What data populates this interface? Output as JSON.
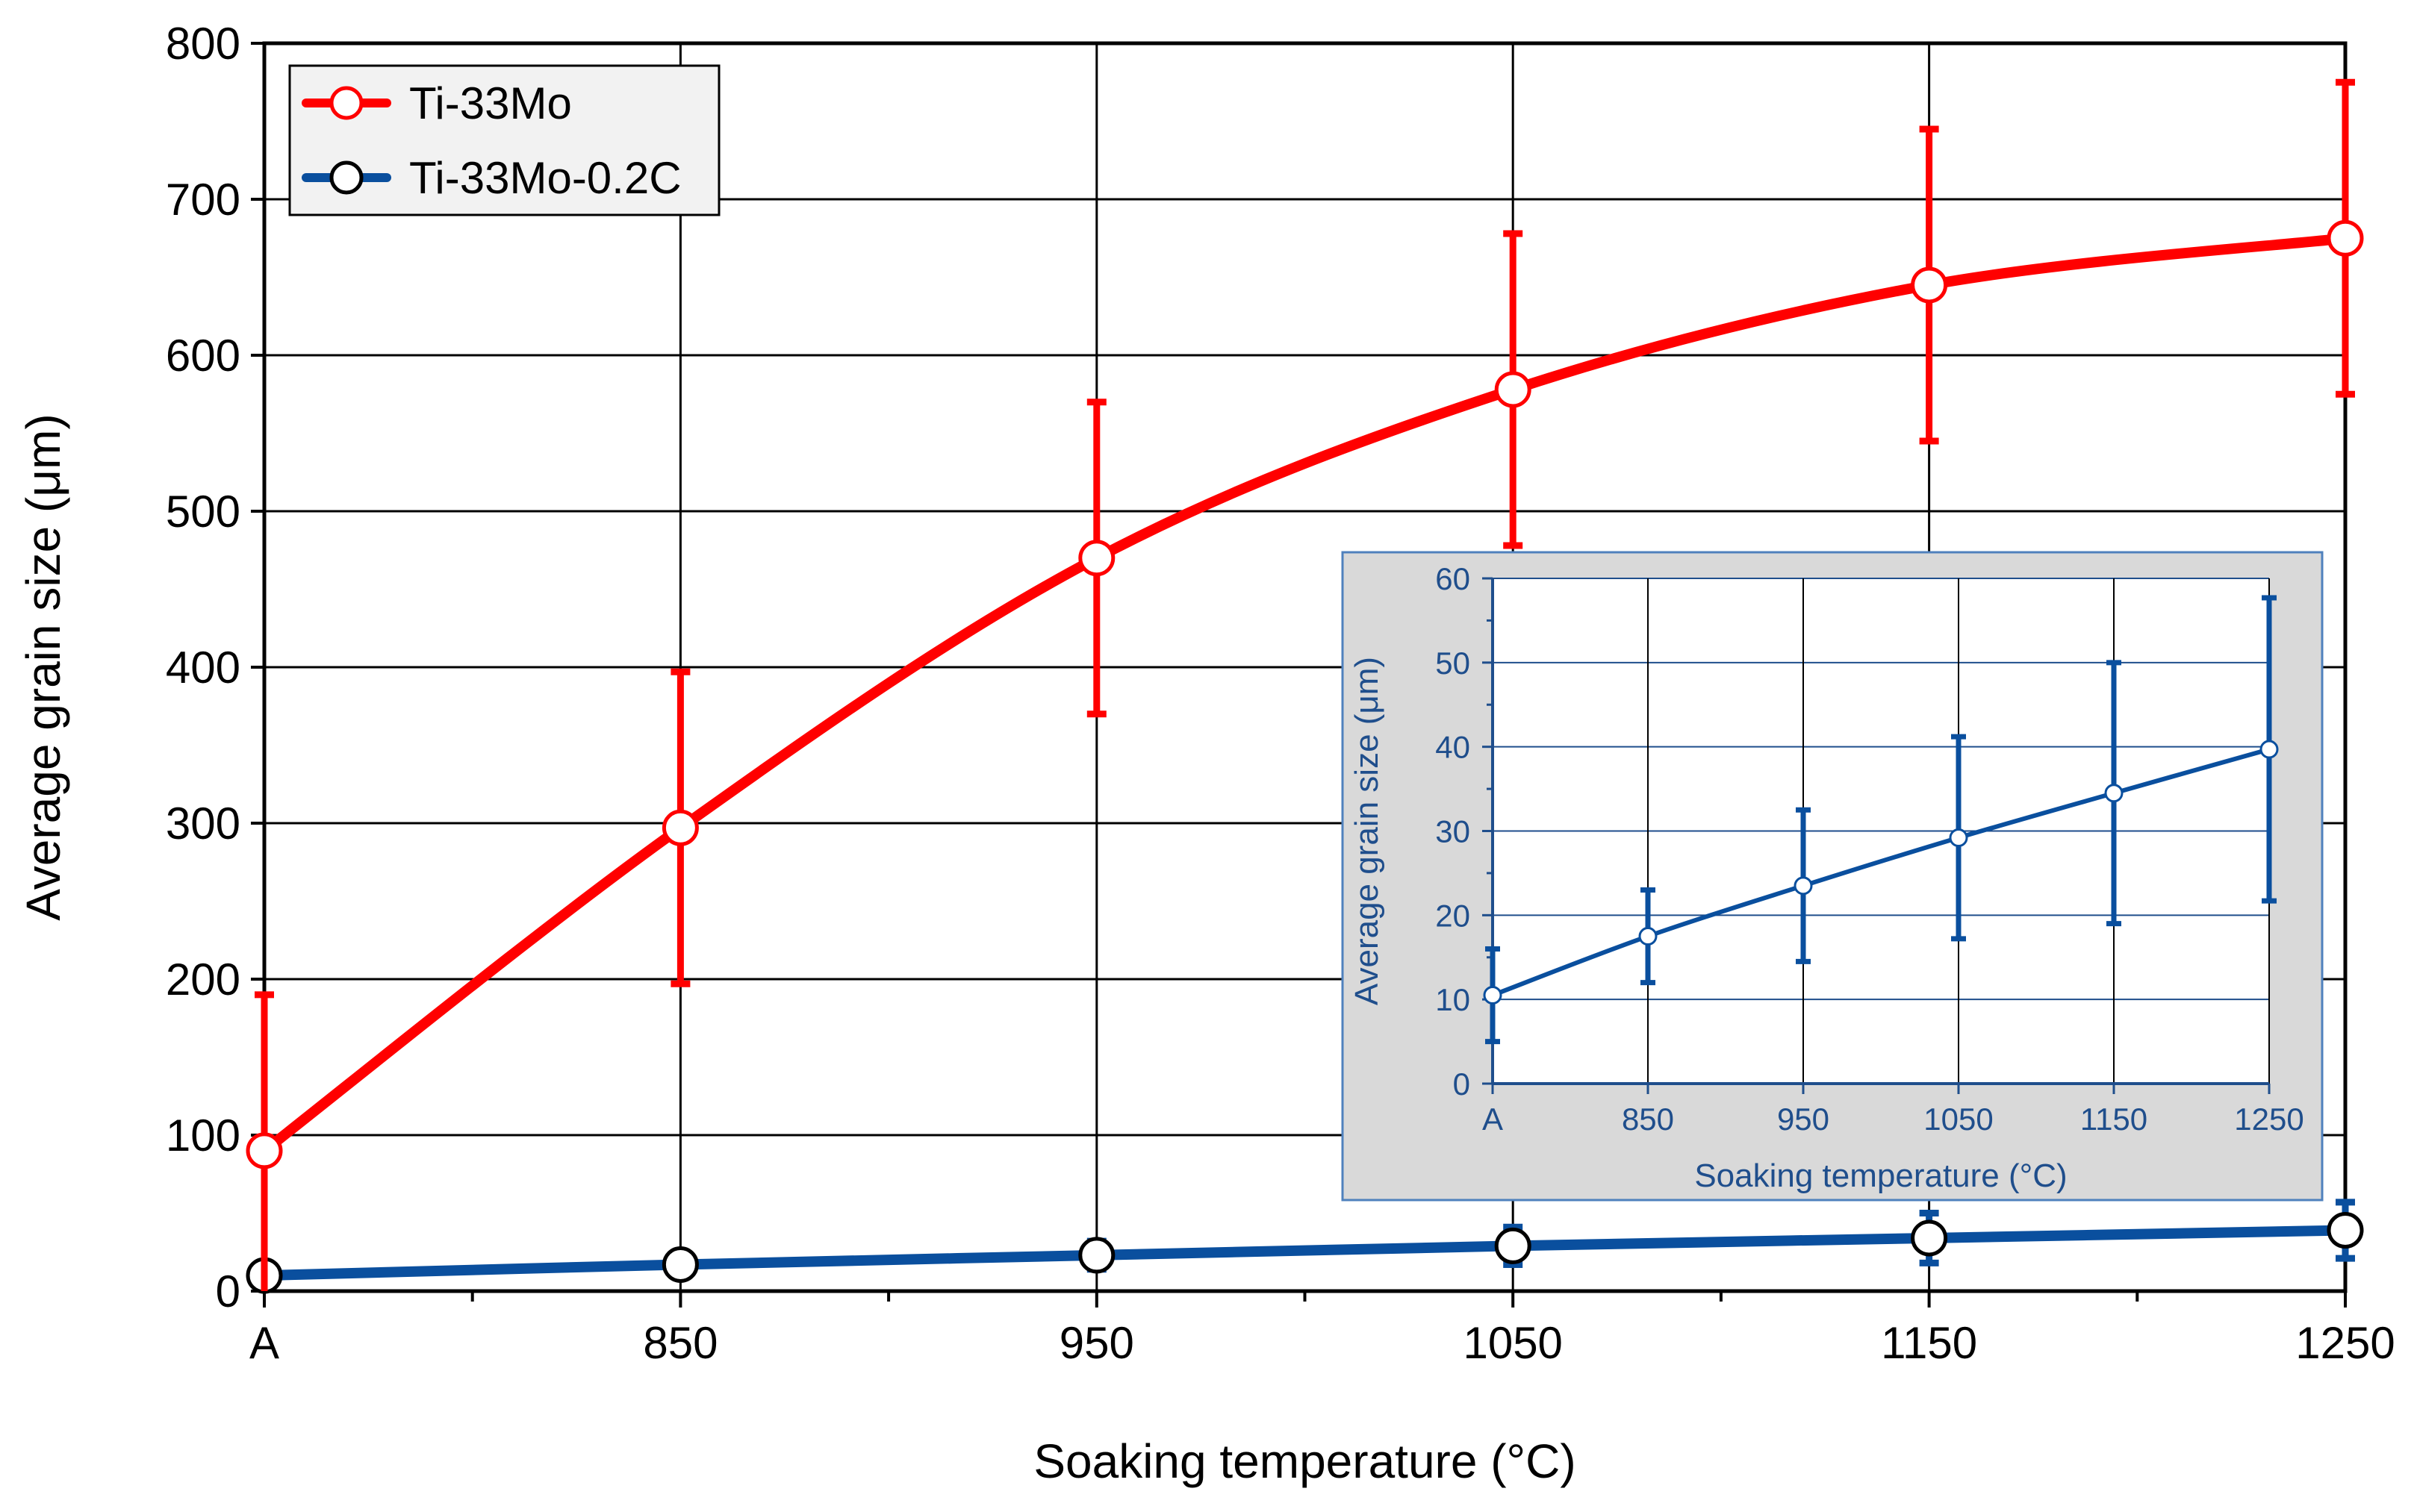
{
  "chart_data": [
    {
      "type": "line",
      "categories": [
        "A",
        "850",
        "950",
        "1050",
        "1150",
        "1250"
      ],
      "xlabel": "Soaking temperature (°C)",
      "ylabel": "Average grain size (μm)",
      "ylim": [
        0,
        800
      ],
      "yticks": [
        0,
        100,
        200,
        300,
        400,
        500,
        600,
        700,
        800
      ],
      "grid": true,
      "legend_position": "top-left",
      "series": [
        {
          "name": "Ti-33Mo",
          "color": "#ff0000",
          "values": [
            90,
            297,
            470,
            578,
            645,
            675
          ],
          "error": [
            100,
            100,
            100,
            100,
            100,
            100
          ]
        },
        {
          "name": "Ti-33Mo-0.2C",
          "color": "#0a4f9e",
          "values": [
            10,
            17,
            23,
            29,
            34,
            39
          ],
          "error": [
            5,
            5,
            9,
            12,
            16,
            18
          ]
        }
      ]
    },
    {
      "type": "line",
      "inset": true,
      "categories": [
        "A",
        "850",
        "950",
        "1050",
        "1150",
        "1250"
      ],
      "xlabel": "Soaking temperature (°C)",
      "ylabel": "Average grain size (μm)",
      "ylim": [
        0,
        60
      ],
      "yticks": [
        0,
        10,
        20,
        30,
        40,
        50,
        60
      ],
      "grid": true,
      "series": [
        {
          "name": "Ti-33Mo-0.2C",
          "color": "#0a4f9e",
          "values": [
            10.5,
            17.5,
            23.5,
            29.2,
            34.5,
            39.7
          ],
          "error": [
            5.5,
            5.5,
            9,
            12,
            15.5,
            18
          ]
        }
      ]
    }
  ]
}
